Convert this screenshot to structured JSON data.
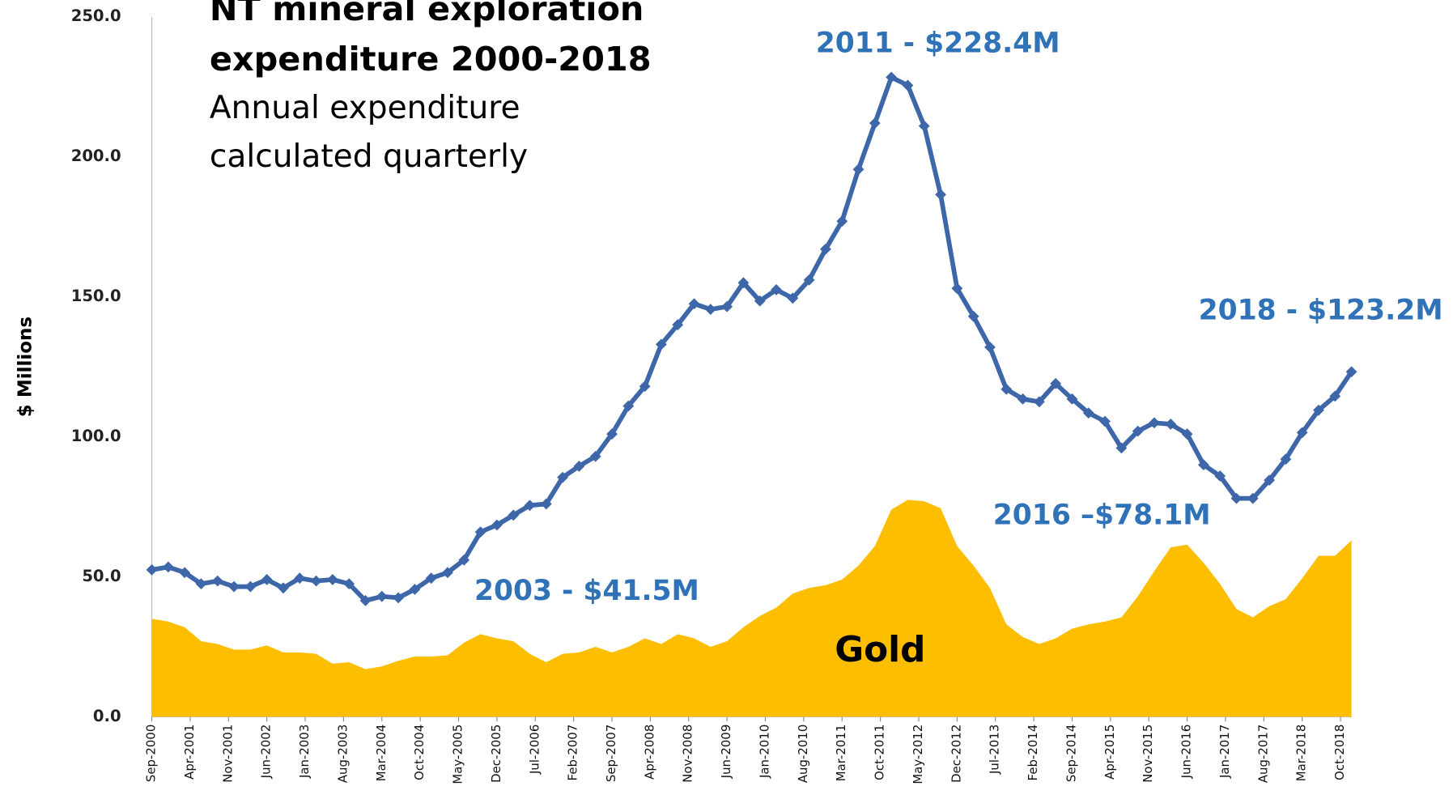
{
  "chart_data": {
    "type": "line",
    "title": [
      "NT mineral exploration",
      "expenditure 2000-2018"
    ],
    "subtitle": [
      "Annual expenditure",
      "calculated quarterly"
    ],
    "y_label": "$ Millions",
    "xticks": [
      "Sep-2000",
      "Apr-2001",
      "Nov-2001",
      "Jun-2002",
      "Jan-2003",
      "Aug-2003",
      "Mar-2004",
      "Oct-2004",
      "May-2005",
      "Dec-2005",
      "Jul-2006",
      "Feb-2007",
      "Sep-2007",
      "Apr-2008",
      "Nov-2008",
      "Jun-2009",
      "Jan-2010",
      "Aug-2010",
      "Mar-2011",
      "Oct-2011",
      "May-2012",
      "Dec-2012",
      "Jul-2013",
      "Feb-2014",
      "Sep-2014",
      "Apr-2015",
      "Nov-2015",
      "Jun-2016",
      "Jan-2017",
      "Aug-2017",
      "Mar-2018",
      "Oct-2018"
    ],
    "ylim": [
      0,
      250
    ],
    "yticks": [
      {
        "value": 0,
        "label": "0.0"
      },
      {
        "value": 50,
        "label": "50.0"
      },
      {
        "value": 100,
        "label": "100.0"
      },
      {
        "value": 150,
        "label": "150.0"
      },
      {
        "value": 200,
        "label": "200.0"
      },
      {
        "value": 250,
        "label": "250.0"
      }
    ],
    "annotations": [
      "2011 - $228.4M",
      "2018 - $123.2M",
      "2016 –$78.1M",
      "2003 - $41.5M"
    ],
    "series": [
      {
        "color": "#3d67a9",
        "style": "line",
        "values": [
          52.5,
          53.5,
          51.5,
          47.5,
          48.5,
          46.5,
          46.5,
          49,
          46,
          49.5,
          48.5,
          49,
          47.5,
          41.5,
          43,
          42.5,
          45.5,
          49.5,
          51.5,
          56,
          66,
          68.5,
          72,
          75.5,
          76,
          85.5,
          89.5,
          93,
          101,
          111,
          118,
          133,
          140,
          147.5,
          145.5,
          146.5,
          155,
          148.5,
          152.5,
          149.5,
          156,
          167,
          177,
          195.5,
          212,
          228.4,
          225.5,
          211,
          186.5,
          153,
          143,
          132,
          117,
          113.5,
          112.5,
          119,
          113.5,
          108.5,
          105.5,
          96,
          102,
          105,
          104.5,
          101,
          90,
          86,
          78,
          78,
          84.5,
          92,
          101.5,
          109.5,
          114.5,
          123.2
        ]
      },
      {
        "name": "Gold",
        "color": "#fdbe00",
        "style": "area",
        "values": [
          35,
          34,
          32,
          27,
          26,
          24,
          24,
          25.5,
          23,
          23,
          22.5,
          19,
          19.5,
          17,
          18,
          20,
          21.5,
          21.5,
          22,
          26.5,
          29.5,
          28,
          27,
          22.5,
          19.5,
          22.5,
          23,
          25,
          23,
          25,
          28,
          26,
          29.5,
          28,
          25,
          27,
          32,
          36,
          39,
          44,
          46,
          47,
          49,
          54,
          61,
          74,
          77.5,
          77,
          74.5,
          61,
          54,
          46,
          33,
          28.5,
          26,
          28,
          31.5,
          33,
          34,
          35.5,
          43,
          52,
          60.5,
          61.5,
          55,
          47.5,
          38.5,
          35.5,
          39.5,
          42,
          49.5,
          57.5,
          57.5,
          63
        ]
      }
    ]
  }
}
